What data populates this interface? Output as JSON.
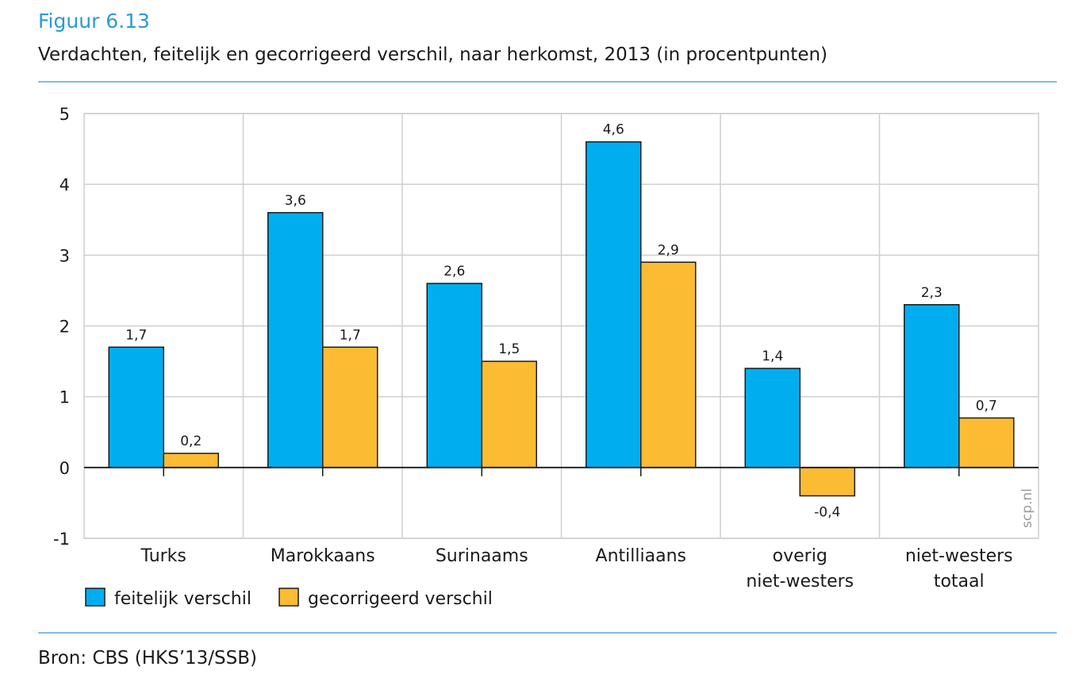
{
  "figure": {
    "label": "Figuur 6.13",
    "title": "Verdachten, feitelijk en gecorrigeerd verschil, naar herkomst, 2013 (in procentpunten)",
    "source": "Bron: CBS (HKS’13/SSB)",
    "watermark": "scp.nl"
  },
  "chart_data": {
    "type": "bar",
    "title": "Verdachten, feitelijk en gecorrigeerd verschil, naar herkomst, 2013 (in procentpunten)",
    "xlabel": "",
    "ylabel": "",
    "ylim": [
      -1,
      5
    ],
    "yticks": [
      "5",
      "4",
      "3",
      "2",
      "1",
      "0",
      "-1"
    ],
    "yticks_values": [
      5,
      4,
      3,
      2,
      1,
      0,
      -1
    ],
    "grid": true,
    "legend_position": "bottom-left",
    "categories": [
      [
        "Turks"
      ],
      [
        "Marokkaans"
      ],
      [
        "Surinaams"
      ],
      [
        "Antilliaans"
      ],
      [
        "overig",
        "niet-westers"
      ],
      [
        "niet-westers",
        "totaal"
      ]
    ],
    "series": [
      {
        "name": "feitelijk verschil",
        "color": "#00aeef",
        "values": [
          1.7,
          3.6,
          2.6,
          4.6,
          1.4,
          2.3
        ],
        "labels": [
          "1,7",
          "3,6",
          "2,6",
          "4,6",
          "1,4",
          "2,3"
        ]
      },
      {
        "name": "gecorrigeerd verschil",
        "color": "#fbbb33",
        "values": [
          0.2,
          1.7,
          1.5,
          2.9,
          -0.4,
          0.7
        ],
        "labels": [
          "0,2",
          "1,7",
          "1,5",
          "2,9",
          "-0,4",
          "0,7"
        ]
      }
    ]
  }
}
